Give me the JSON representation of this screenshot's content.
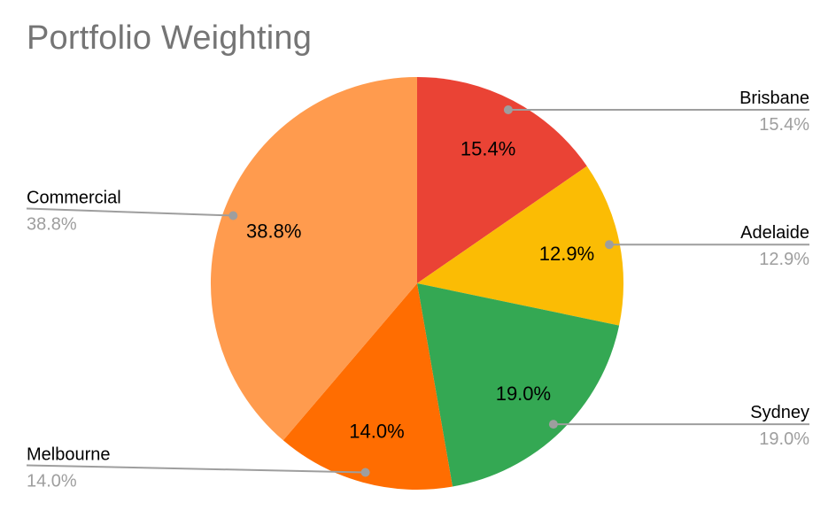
{
  "page": {
    "background": "#FFFFFF"
  },
  "chart_data": {
    "type": "pie",
    "title": "Portfolio Weighting",
    "title_color": "#757575",
    "background": "#FFFFFF",
    "start_angle_deg": 0,
    "direction": "clockwise",
    "legend_position": "callout-labels",
    "categories": [
      "Brisbane",
      "Adelaide",
      "Sydney",
      "Melbourne",
      "Commercial"
    ],
    "values": [
      15.4,
      12.9,
      19.0,
      14.0,
      38.8
    ],
    "slices": [
      {
        "label": "Brisbane",
        "value": 15.4,
        "pct_label": "15.4%",
        "color": "#EA4335",
        "callout_side": "right"
      },
      {
        "label": "Adelaide",
        "value": 12.9,
        "pct_label": "12.9%",
        "color": "#FBBC04",
        "callout_side": "right"
      },
      {
        "label": "Sydney",
        "value": 19.0,
        "pct_label": "19.0%",
        "color": "#34A853",
        "callout_side": "right"
      },
      {
        "label": "Melbourne",
        "value": 14.0,
        "pct_label": "14.0%",
        "color": "#FF6D01",
        "callout_side": "left"
      },
      {
        "label": "Commercial",
        "value": 38.8,
        "pct_label": "38.8%",
        "color": "#FF9B4E",
        "callout_side": "left"
      }
    ],
    "inner_label_color": "#000000",
    "callout_name_color": "#000000",
    "callout_value_color": "#9E9E9E",
    "leader_line_color": "#9E9E9E"
  }
}
